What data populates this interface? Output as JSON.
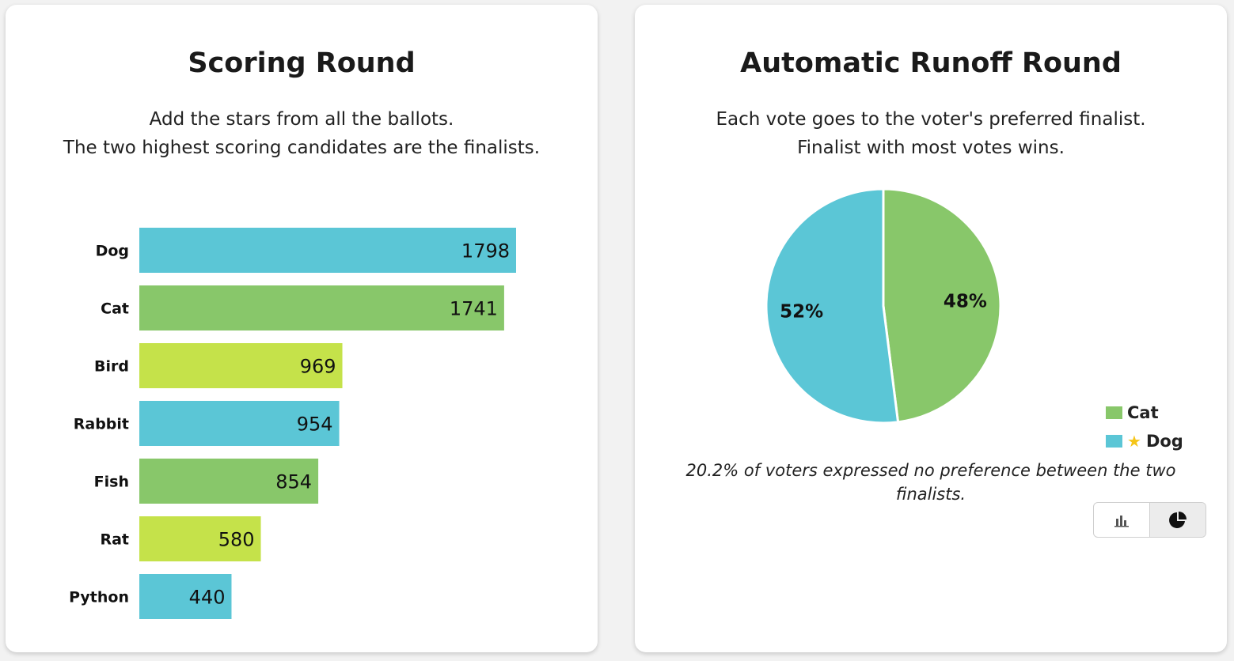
{
  "left_card": {
    "title": "Scoring Round",
    "desc_line1": "Add the stars from all the ballots.",
    "desc_line2": "The two highest scoring candidates are the finalists."
  },
  "right_card": {
    "title": "Automatic Runoff Round",
    "desc_line1": "Each vote goes to the voter's preferred finalist.",
    "desc_line2": "Finalist with most votes wins.",
    "legend": [
      {
        "label": "Cat",
        "color": "#88c76a",
        "icon": ""
      },
      {
        "label": "Dog",
        "color": "#5bc6d6",
        "icon": "star-icon"
      }
    ],
    "note": "20.2% of voters expressed no preference between the two finalists.",
    "toggle": {
      "bar_icon": "bar-chart-icon",
      "pie_icon": "pie-chart-icon",
      "active": "pie"
    }
  },
  "chart_data": [
    {
      "type": "bar",
      "orientation": "horizontal",
      "title": "Scoring Round",
      "categories": [
        "Dog",
        "Cat",
        "Bird",
        "Rabbit",
        "Fish",
        "Rat",
        "Python"
      ],
      "values": [
        1798,
        1741,
        969,
        954,
        854,
        580,
        440
      ],
      "colors": [
        "#5bc6d6",
        "#88c76a",
        "#c5e24a",
        "#5bc6d6",
        "#88c76a",
        "#c5e24a",
        "#5bc6d6"
      ],
      "xlim": [
        0,
        1798
      ],
      "grid": false
    },
    {
      "type": "pie",
      "title": "Automatic Runoff Round",
      "labels": [
        "Cat",
        "Dog"
      ],
      "values": [
        48,
        52
      ],
      "value_labels": [
        "48%",
        "52%"
      ],
      "colors": [
        "#88c76a",
        "#5bc6d6"
      ],
      "legend": "bottom-right"
    }
  ]
}
